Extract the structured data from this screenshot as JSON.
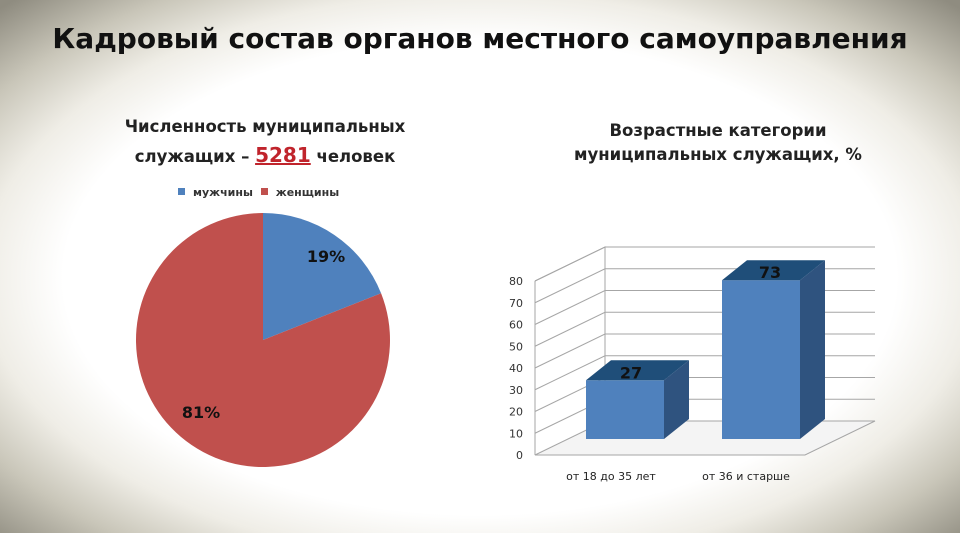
{
  "title": "Кадровый состав органов местного самоуправления",
  "colors": {
    "men": "#4f81bd",
    "women": "#c0504d",
    "accent": "#c0242c"
  },
  "chart_data": [
    {
      "type": "pie",
      "title_part1": "Численность муниципальных служащих – ",
      "title_number": "5281",
      "title_part2": " человек",
      "categories": [
        "мужчины",
        "женщины"
      ],
      "values": [
        19,
        81
      ],
      "labels": [
        "19%",
        "81%"
      ]
    },
    {
      "type": "bar",
      "title": "Возрастные категории муниципальных служащих, %",
      "categories": [
        "от 18 до 35 лет",
        "от 36 и старше"
      ],
      "values": [
        27,
        73
      ],
      "labels": [
        "27",
        "73"
      ],
      "ylim": [
        0,
        80
      ],
      "yticks": [
        "0",
        "10",
        "20",
        "30",
        "40",
        "50",
        "60",
        "70",
        "80"
      ],
      "grid": true
    }
  ]
}
